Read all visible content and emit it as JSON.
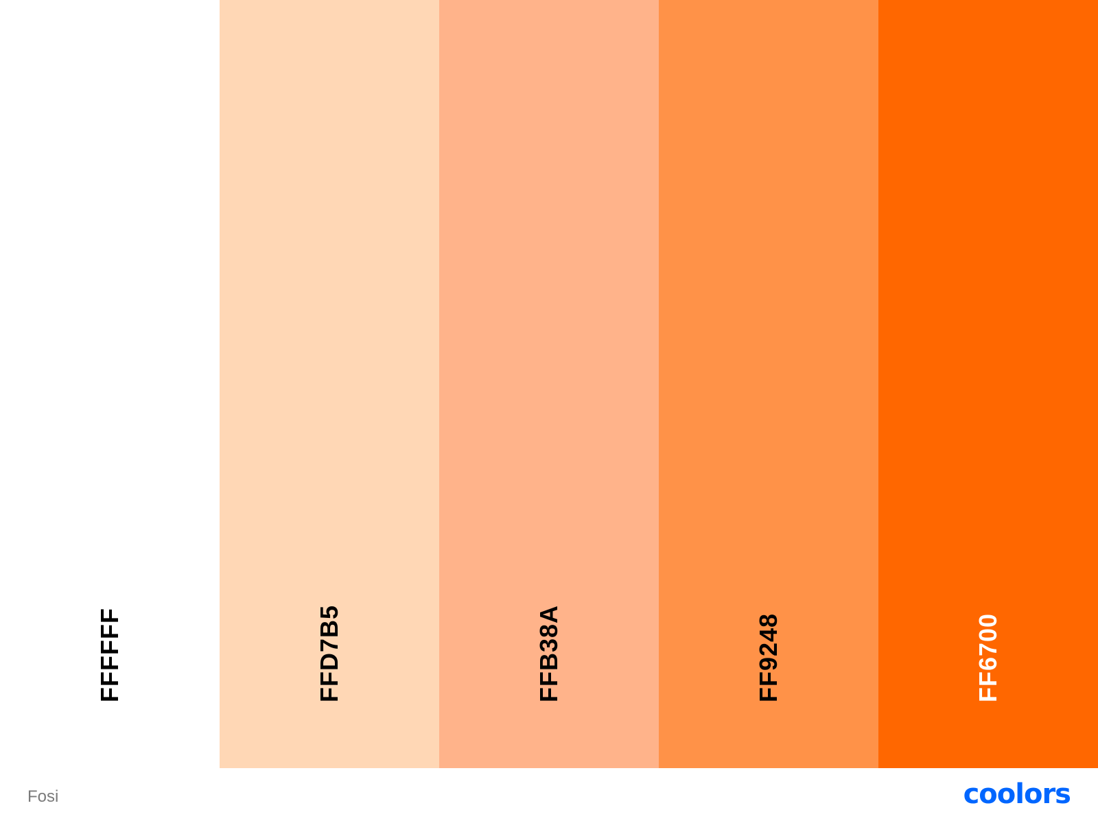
{
  "palette": {
    "name": "Fosi",
    "swatches": [
      {
        "hex": "FFFFFF",
        "color": "#FFFFFF",
        "text_color": "#000000"
      },
      {
        "hex": "FFD7B5",
        "color": "#FFD7B5",
        "text_color": "#000000"
      },
      {
        "hex": "FFB38A",
        "color": "#FFB38A",
        "text_color": "#000000"
      },
      {
        "hex": "FF9248",
        "color": "#FF9248",
        "text_color": "#000000"
      },
      {
        "hex": "FF6700",
        "color": "#FF6700",
        "text_color": "#FFFFFF"
      }
    ]
  },
  "footer": {
    "palette_name": "Fosi",
    "brand": "coolors",
    "brand_color": "#0066FF"
  }
}
